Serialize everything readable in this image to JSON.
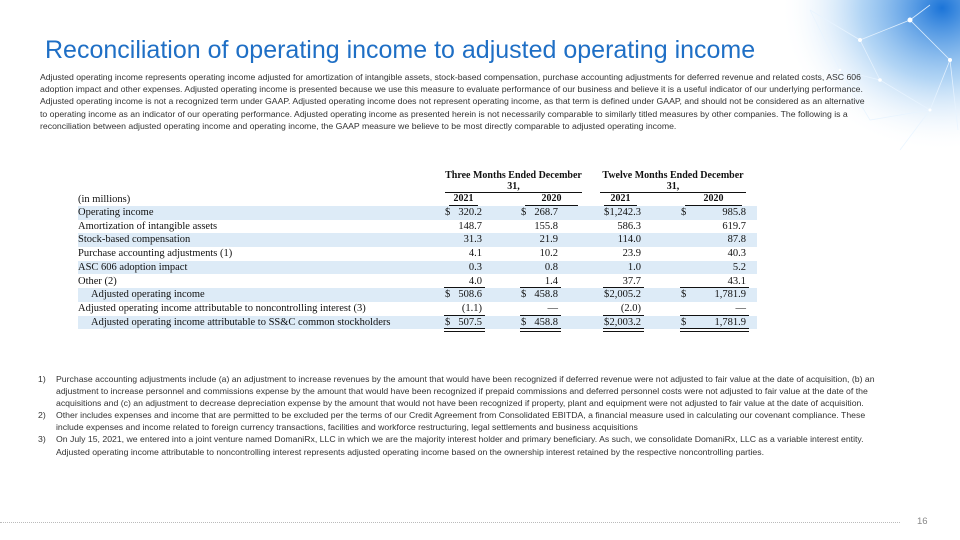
{
  "title": "Reconciliation of operating income to adjusted operating income",
  "intro": "Adjusted operating income represents operating income adjusted for amortization of intangible assets, stock-based compensation, purchase accounting adjustments for deferred revenue and related costs, ASC 606 adoption impact and other expenses.  Adjusted operating income is presented because we use this measure to evaluate performance of our business and believe it is a useful indicator of our underlying performance.  Adjusted operating income is not a recognized term under GAAP.  Adjusted operating income does not represent operating income, as that term is defined under GAAP, and should not be considered as an alternative to operating income as an indicator of our operating performance.  Adjusted operating income as presented herein is not necessarily comparable to similarly titled measures by other companies.  The following is a reconciliation between adjusted operating income and operating income, the GAAP measure we believe to be most directly comparable to adjusted operating income.",
  "table": {
    "groups": [
      "Three Months Ended December 31,",
      "Twelve Months Ended December 31,"
    ],
    "years": [
      "2021",
      "2020",
      "2021",
      "2020"
    ],
    "unit_label": "(in millions)",
    "currency": "$",
    "rows": [
      {
        "label": "Operating income",
        "dollar_sign": true,
        "indent": false,
        "cells": [
          "320.2",
          "268.7",
          "1,242.3",
          "985.8"
        ]
      },
      {
        "label": "Amortization of intangible assets",
        "dollar_sign": false,
        "indent": false,
        "cells": [
          "148.7",
          "155.8",
          "586.3",
          "619.7"
        ]
      },
      {
        "label": "Stock-based compensation",
        "dollar_sign": false,
        "indent": false,
        "cells": [
          "31.3",
          "21.9",
          "114.0",
          "87.8"
        ]
      },
      {
        "label": "Purchase accounting adjustments (1)",
        "dollar_sign": false,
        "indent": false,
        "cells": [
          "4.1",
          "10.2",
          "23.9",
          "40.3"
        ]
      },
      {
        "label": "ASC 606 adoption impact",
        "dollar_sign": false,
        "indent": false,
        "cells": [
          "0.3",
          "0.8",
          "1.0",
          "5.2"
        ]
      },
      {
        "label": "Other (2)",
        "dollar_sign": false,
        "indent": false,
        "cells": [
          "4.0",
          "1.4",
          "37.7",
          "43.1"
        ]
      },
      {
        "label": "Adjusted operating income",
        "dollar_sign": true,
        "indent": true,
        "cells": [
          "508.6",
          "458.8",
          "2,005.2",
          "1,781.9"
        ]
      },
      {
        "label": "Adjusted operating income attributable to noncontrolling interest (3)",
        "dollar_sign": false,
        "indent": false,
        "cells": [
          "(1.1)",
          "—",
          "(2.0)",
          "—"
        ]
      },
      {
        "label": "Adjusted operating income attributable to SS&C common stockholders",
        "dollar_sign": true,
        "indent": true,
        "cells": [
          "507.5",
          "458.8",
          "2,003.2",
          "1,781.9"
        ]
      }
    ]
  },
  "footnotes": [
    {
      "marker": "1)",
      "text": "Purchase accounting adjustments include (a) an adjustment to increase revenues by the amount that would have been recognized if deferred revenue were not adjusted to fair value at the date of acquisition, (b) an adjustment to increase personnel and commissions expense by the amount that would have been recognized if prepaid commissions and deferred personnel costs were not adjusted to fair value at the date of the acquisitions and (c) an adjustment to decrease depreciation expense by the amount that would not have been recognized if property, plant and equipment were not adjusted to fair value at the date of acquisition."
    },
    {
      "marker": "2)",
      "text": "Other includes expenses and income that are permitted to be excluded per the terms of our Credit Agreement from Consolidated EBITDA, a financial measure used in calculating our covenant compliance.  These include expenses and income related to foreign currency transactions, facilities and workforce restructuring, legal settlements and business acquisitions"
    },
    {
      "marker": "3)",
      "text": "On July 15, 2021, we entered into a joint venture named DomaniRx, LLC in which we are the majority interest holder and  primary beneficiary.  As such, we consolidate DomaniRx, LLC as a variable interest entity. Adjusted operating income attributable to noncontrolling interest represents adjusted operating income based on the ownership interest retained by the respective noncontrolling parties."
    }
  ],
  "page_number": "16"
}
